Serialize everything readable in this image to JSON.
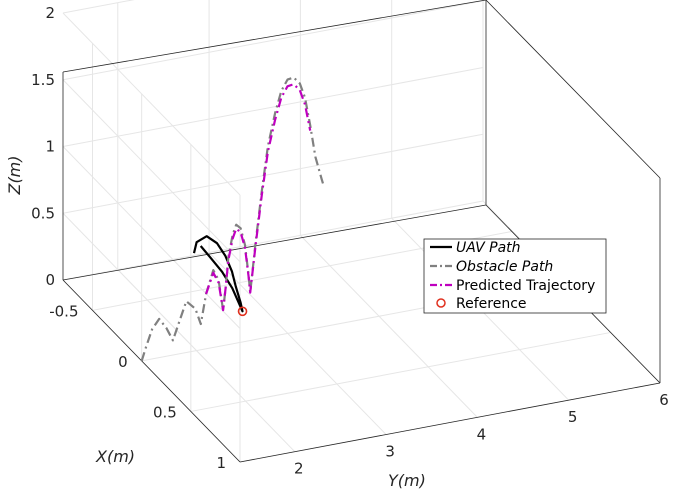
{
  "chart_data": {
    "type": "line",
    "projection": "3d",
    "xlabel": "X(m)",
    "ylabel": "Y(m)",
    "zlabel": "Z(m)",
    "x_ticks": [
      "-0.5",
      "0",
      "0.5",
      "1"
    ],
    "y_ticks": [
      "2",
      "3",
      "4",
      "5",
      "6"
    ],
    "z_ticks": [
      "0",
      "0.5",
      "1",
      "1.5",
      "2"
    ],
    "xlim": [
      -0.8,
      1.0
    ],
    "ylim": [
      1.4,
      6.0
    ],
    "zlim": [
      0,
      2
    ],
    "grid": true,
    "legend_position": "right",
    "series": [
      {
        "name": "UAV Path",
        "style": "solid",
        "color": "#000000",
        "points": [
          [
            -0.35,
            2.35,
            0.42
          ],
          [
            -0.37,
            2.4,
            0.48
          ],
          [
            -0.36,
            2.5,
            0.52
          ],
          [
            -0.33,
            2.58,
            0.48
          ],
          [
            -0.3,
            2.64,
            0.4
          ],
          [
            -0.27,
            2.68,
            0.3
          ],
          [
            -0.25,
            2.7,
            0.2
          ],
          [
            -0.22,
            2.72,
            0.1
          ],
          [
            -0.2,
            2.72,
            0.05
          ],
          [
            -0.22,
            2.63,
            0.22
          ],
          [
            -0.25,
            2.55,
            0.33
          ],
          [
            -0.28,
            2.45,
            0.43
          ],
          [
            -0.31,
            2.38,
            0.5
          ]
        ]
      },
      {
        "name": "Obstacle Path",
        "style": "dashdot",
        "color": "#808080",
        "points": [
          [
            0.0,
            1.4,
            0.0
          ],
          [
            -0.05,
            1.5,
            0.05
          ],
          [
            -0.08,
            1.6,
            0.15
          ],
          [
            -0.1,
            1.7,
            0.2
          ],
          [
            -0.1,
            1.78,
            0.12
          ],
          [
            -0.1,
            1.85,
            0.02
          ],
          [
            -0.12,
            1.95,
            0.15
          ],
          [
            -0.15,
            2.05,
            0.25
          ],
          [
            -0.15,
            2.15,
            0.18
          ],
          [
            -0.16,
            2.22,
            0.05
          ],
          [
            -0.18,
            2.3,
            0.25
          ],
          [
            -0.2,
            2.4,
            0.4
          ],
          [
            -0.22,
            2.48,
            0.3
          ],
          [
            -0.24,
            2.55,
            0.05
          ],
          [
            -0.26,
            2.6,
            0.2
          ],
          [
            -0.28,
            2.65,
            0.4
          ],
          [
            -0.3,
            2.72,
            0.55
          ],
          [
            -0.32,
            2.78,
            0.6
          ],
          [
            -0.34,
            2.85,
            0.55
          ],
          [
            -0.36,
            2.92,
            0.4
          ],
          [
            -0.38,
            2.98,
            0.15
          ],
          [
            -0.4,
            3.02,
            0.0
          ],
          [
            -0.42,
            3.1,
            0.35
          ],
          [
            -0.45,
            3.2,
            0.7
          ],
          [
            -0.48,
            3.3,
            1.0
          ],
          [
            -0.5,
            3.4,
            1.22
          ],
          [
            -0.53,
            3.5,
            1.35
          ],
          [
            -0.56,
            3.6,
            1.4
          ],
          [
            -0.59,
            3.7,
            1.38
          ],
          [
            -0.62,
            3.8,
            1.3
          ],
          [
            -0.66,
            3.9,
            1.15
          ],
          [
            -0.7,
            4.0,
            0.9
          ],
          [
            -0.74,
            4.1,
            0.62
          ],
          [
            -0.77,
            4.2,
            0.42
          ],
          [
            -0.8,
            4.25,
            0.35
          ]
        ]
      },
      {
        "name": "Predicted Trajectory",
        "style": "dashdot",
        "color": "#bf00bf",
        "points": [
          [
            -0.18,
            2.3,
            0.25
          ],
          [
            -0.2,
            2.4,
            0.38
          ],
          [
            -0.22,
            2.48,
            0.28
          ],
          [
            -0.24,
            2.55,
            0.05
          ],
          [
            -0.26,
            2.6,
            0.2
          ],
          [
            -0.28,
            2.65,
            0.38
          ],
          [
            -0.3,
            2.72,
            0.52
          ],
          [
            -0.32,
            2.78,
            0.57
          ],
          [
            -0.34,
            2.85,
            0.52
          ],
          [
            -0.36,
            2.92,
            0.38
          ],
          [
            -0.38,
            2.98,
            0.14
          ],
          [
            -0.4,
            3.02,
            0.0
          ],
          [
            -0.42,
            3.1,
            0.33
          ],
          [
            -0.45,
            3.2,
            0.67
          ],
          [
            -0.48,
            3.3,
            0.96
          ],
          [
            -0.5,
            3.4,
            1.17
          ],
          [
            -0.53,
            3.5,
            1.3
          ],
          [
            -0.56,
            3.6,
            1.35
          ],
          [
            -0.59,
            3.7,
            1.33
          ],
          [
            -0.62,
            3.8,
            1.25
          ],
          [
            -0.66,
            3.9,
            1.1
          ],
          [
            -0.7,
            4.0,
            0.86
          ]
        ]
      },
      {
        "name": "Reference",
        "style": "marker-circle",
        "color": "#e0301e",
        "points": [
          [
            -0.2,
            2.72,
            0.05
          ]
        ]
      }
    ]
  }
}
